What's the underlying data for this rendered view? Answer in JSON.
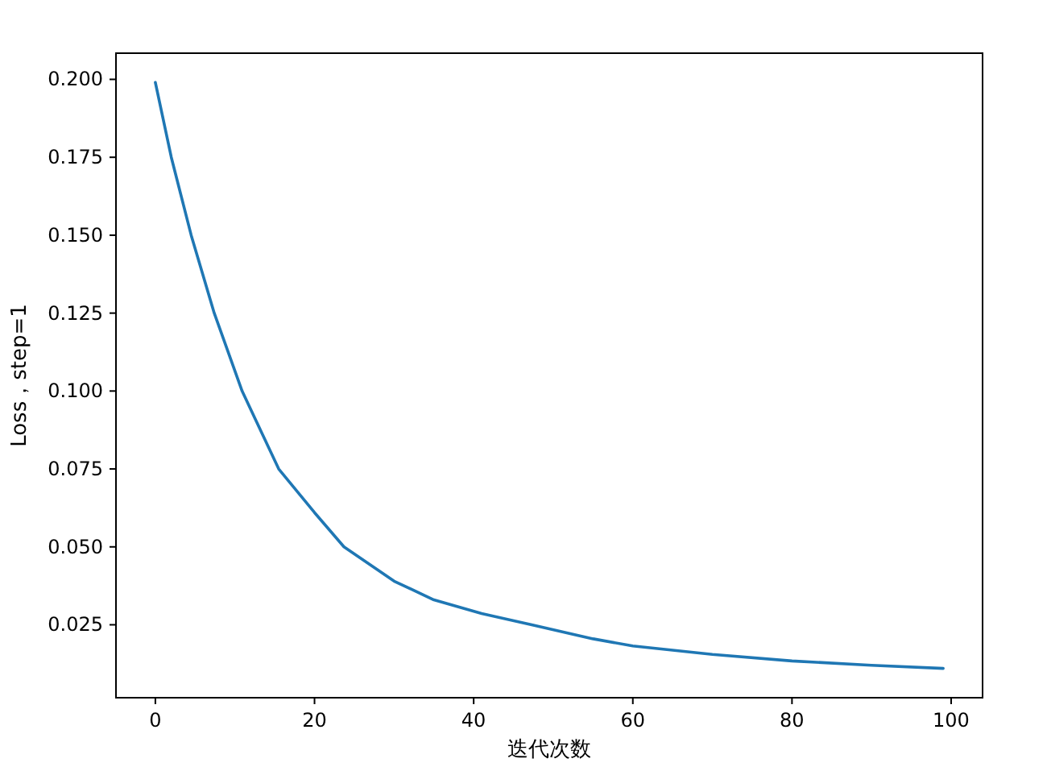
{
  "chart_data": {
    "type": "line",
    "xlabel": "迭代次数",
    "ylabel": "Loss，step=1",
    "x": [
      0,
      2,
      4.5,
      7.4,
      10.9,
      15.5,
      20,
      23.7,
      30,
      35,
      41,
      47.3,
      55,
      60,
      70,
      80,
      90,
      99
    ],
    "series": [
      {
        "color": "#1f77b4",
        "values": [
          0.199,
          0.175,
          0.15,
          0.125,
          0.1,
          0.075,
          0.061,
          0.05,
          0.039,
          0.033,
          0.0286,
          0.025,
          0.0205,
          0.0182,
          0.0155,
          0.0134,
          0.012,
          0.011
        ]
      }
    ],
    "xlim": [
      -4.95,
      103.95
    ],
    "ylim": [
      0.0016,
      0.2084
    ],
    "xticks": [
      0,
      20,
      40,
      60,
      80,
      100
    ],
    "yticks": [
      {
        "value": 0.025,
        "label": "0.025"
      },
      {
        "value": 0.05,
        "label": "0.050"
      },
      {
        "value": 0.075,
        "label": "0.075"
      },
      {
        "value": 0.1,
        "label": "0.100"
      },
      {
        "value": 0.125,
        "label": "0.125"
      },
      {
        "value": 0.15,
        "label": "0.150"
      },
      {
        "value": 0.175,
        "label": "0.175"
      },
      {
        "value": 0.2,
        "label": "0.200"
      }
    ]
  }
}
